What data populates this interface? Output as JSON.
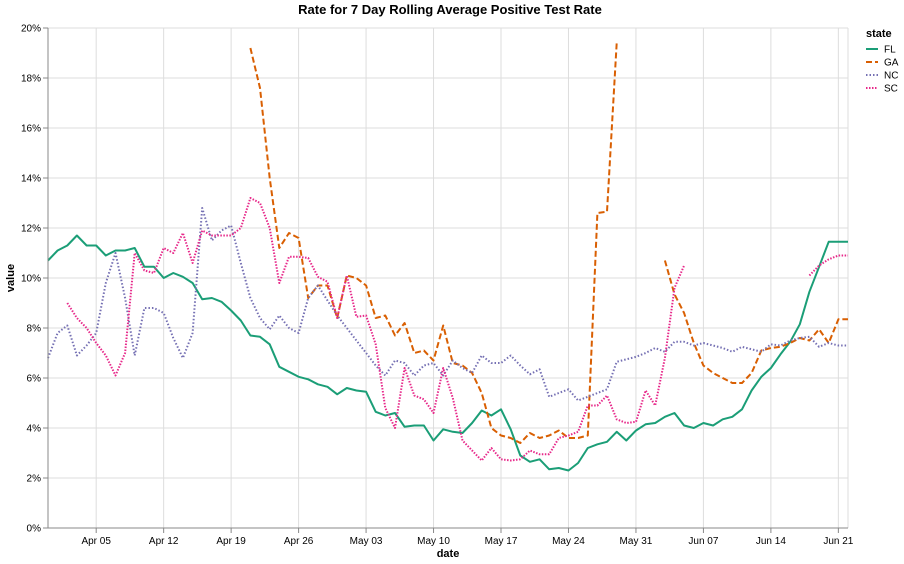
{
  "chart_data": {
    "type": "line",
    "title": "Rate for 7 Day Rolling Average Positive Test Rate",
    "xlabel": "date",
    "ylabel": "value",
    "x_start": "2020-03-31",
    "x_end": "2020-06-22",
    "xlim": [
      "2020-03-31",
      "2020-06-22"
    ],
    "ylim": [
      0,
      20
    ],
    "y_ticks": [
      "0%",
      "2%",
      "4%",
      "6%",
      "8%",
      "10%",
      "12%",
      "14%",
      "16%",
      "18%",
      "20%"
    ],
    "x_ticks": [
      {
        "date": "2020-04-05",
        "label": "Apr 05"
      },
      {
        "date": "2020-04-12",
        "label": "Apr 12"
      },
      {
        "date": "2020-04-19",
        "label": "Apr 19"
      },
      {
        "date": "2020-04-26",
        "label": "Apr 26"
      },
      {
        "date": "2020-05-03",
        "label": "May 03"
      },
      {
        "date": "2020-05-10",
        "label": "May 10"
      },
      {
        "date": "2020-05-17",
        "label": "May 17"
      },
      {
        "date": "2020-05-24",
        "label": "May 24"
      },
      {
        "date": "2020-05-31",
        "label": "May 31"
      },
      {
        "date": "2020-06-07",
        "label": "Jun 07"
      },
      {
        "date": "2020-06-14",
        "label": "Jun 14"
      },
      {
        "date": "2020-06-21",
        "label": "Jun 21"
      }
    ],
    "grid": true,
    "legend": {
      "title": "state",
      "placement": "top-right"
    },
    "series": [
      {
        "name": "FL",
        "color": "#1b9e77",
        "dash": "solid",
        "x": [
          "2020-03-31",
          "2020-04-01",
          "2020-04-02",
          "2020-04-03",
          "2020-04-04",
          "2020-04-05",
          "2020-04-06",
          "2020-04-07",
          "2020-04-08",
          "2020-04-09",
          "2020-04-10",
          "2020-04-11",
          "2020-04-12",
          "2020-04-13",
          "2020-04-14",
          "2020-04-15",
          "2020-04-16",
          "2020-04-17",
          "2020-04-18",
          "2020-04-19",
          "2020-04-20",
          "2020-04-21",
          "2020-04-22",
          "2020-04-23",
          "2020-04-24",
          "2020-04-25",
          "2020-04-26",
          "2020-04-27",
          "2020-04-28",
          "2020-04-29",
          "2020-04-30",
          "2020-05-01",
          "2020-05-02",
          "2020-05-03",
          "2020-05-04",
          "2020-05-05",
          "2020-05-06",
          "2020-05-07",
          "2020-05-08",
          "2020-05-09",
          "2020-05-10",
          "2020-05-11",
          "2020-05-12",
          "2020-05-13",
          "2020-05-14",
          "2020-05-15",
          "2020-05-16",
          "2020-05-17",
          "2020-05-18",
          "2020-05-19",
          "2020-05-20",
          "2020-05-21",
          "2020-05-22",
          "2020-05-23",
          "2020-05-24",
          "2020-05-25",
          "2020-05-26",
          "2020-05-27",
          "2020-05-28",
          "2020-05-29",
          "2020-05-30",
          "2020-05-31",
          "2020-06-01",
          "2020-06-02",
          "2020-06-03",
          "2020-06-04",
          "2020-06-05",
          "2020-06-06",
          "2020-06-07",
          "2020-06-08",
          "2020-06-09",
          "2020-06-10",
          "2020-06-11",
          "2020-06-12",
          "2020-06-13",
          "2020-06-14",
          "2020-06-15",
          "2020-06-16",
          "2020-06-17",
          "2020-06-18",
          "2020-06-19",
          "2020-06-20",
          "2020-06-21",
          "2020-06-22"
        ],
        "values": [
          10.7,
          11.1,
          11.3,
          11.7,
          11.3,
          11.3,
          10.9,
          11.1,
          11.1,
          11.2,
          10.45,
          10.45,
          10.0,
          10.2,
          10.05,
          9.8,
          9.15,
          9.2,
          9.05,
          8.7,
          8.3,
          7.7,
          7.65,
          7.35,
          6.45,
          6.25,
          6.05,
          5.95,
          5.75,
          5.65,
          5.35,
          5.6,
          5.5,
          5.45,
          4.65,
          4.5,
          4.6,
          4.05,
          4.1,
          4.1,
          3.5,
          3.95,
          3.85,
          3.8,
          4.2,
          4.7,
          4.5,
          4.75,
          3.95,
          2.9,
          2.65,
          2.75,
          2.35,
          2.4,
          2.3,
          2.6,
          3.2,
          3.35,
          3.45,
          3.85,
          3.5,
          3.9,
          4.15,
          4.2,
          4.45,
          4.6,
          4.1,
          4.0,
          4.2,
          4.1,
          4.35,
          4.45,
          4.75,
          5.5,
          6.05,
          6.4,
          6.95,
          7.45,
          8.15,
          9.45,
          10.45,
          11.45,
          11.45,
          11.45
        ]
      },
      {
        "name": "GA",
        "color": "#d95f02",
        "dash": "6,3",
        "x": [
          "2020-04-21",
          "2020-04-22",
          "2020-04-23",
          "2020-04-24",
          "2020-04-25",
          "2020-04-26",
          "2020-04-27",
          "2020-04-28",
          "2020-04-29",
          "2020-04-30",
          "2020-05-01",
          "2020-05-02",
          "2020-05-03",
          "2020-05-04",
          "2020-05-05",
          "2020-05-06",
          "2020-05-07",
          "2020-05-08",
          "2020-05-09",
          "2020-05-10",
          "2020-05-11",
          "2020-05-12",
          "2020-05-13",
          "2020-05-14",
          "2020-05-15",
          "2020-05-16",
          "2020-05-17",
          "2020-05-18",
          "2020-05-19",
          "2020-05-20",
          "2020-05-21",
          "2020-05-22",
          "2020-05-23",
          "2020-05-24",
          "2020-05-25",
          "2020-05-26",
          "2020-05-27",
          "2020-05-28",
          "2020-05-29",
          "2020-05-30",
          "2020-05-31",
          "2020-06-01",
          "2020-06-02",
          "2020-06-03",
          "2020-06-04",
          "2020-06-05",
          "2020-06-06",
          "2020-06-07",
          "2020-06-08",
          "2020-06-09",
          "2020-06-10",
          "2020-06-11",
          "2020-06-12",
          "2020-06-13",
          "2020-06-14",
          "2020-06-15",
          "2020-06-16",
          "2020-06-17",
          "2020-06-18",
          "2020-06-19",
          "2020-06-20",
          "2020-06-21",
          "2020-06-22"
        ],
        "values": [
          19.2,
          17.6,
          14.0,
          11.2,
          11.8,
          11.6,
          9.2,
          9.7,
          9.7,
          8.4,
          10.1,
          10.0,
          9.7,
          8.4,
          8.5,
          7.7,
          8.2,
          7.0,
          7.1,
          6.7,
          8.1,
          6.6,
          6.5,
          6.2,
          5.4,
          4.0,
          3.7,
          3.6,
          3.4,
          3.8,
          3.6,
          3.7,
          3.9,
          3.6,
          3.6,
          3.7,
          12.6,
          12.65,
          19.4,
          null,
          null,
          null,
          null,
          10.7,
          9.35,
          8.6,
          7.4,
          6.5,
          6.2,
          6.0,
          5.8,
          5.8,
          6.2,
          7.1,
          7.2,
          7.25,
          7.4,
          7.6,
          7.5,
          7.95,
          7.4,
          8.35,
          8.35
        ]
      },
      {
        "name": "NC",
        "color": "#7570b3",
        "dash": "1.5,2",
        "x": [
          "2020-03-31",
          "2020-04-01",
          "2020-04-02",
          "2020-04-03",
          "2020-04-04",
          "2020-04-05",
          "2020-04-06",
          "2020-04-07",
          "2020-04-08",
          "2020-04-09",
          "2020-04-10",
          "2020-04-11",
          "2020-04-12",
          "2020-04-13",
          "2020-04-14",
          "2020-04-15",
          "2020-04-16",
          "2020-04-17",
          "2020-04-18",
          "2020-04-19",
          "2020-04-20",
          "2020-04-21",
          "2020-04-22",
          "2020-04-23",
          "2020-04-24",
          "2020-04-25",
          "2020-04-26",
          "2020-04-27",
          "2020-04-28",
          "2020-04-29",
          "2020-04-30",
          "2020-05-01",
          "2020-05-02",
          "2020-05-03",
          "2020-05-04",
          "2020-05-05",
          "2020-05-06",
          "2020-05-07",
          "2020-05-08",
          "2020-05-09",
          "2020-05-10",
          "2020-05-11",
          "2020-05-12",
          "2020-05-13",
          "2020-05-14",
          "2020-05-15",
          "2020-05-16",
          "2020-05-17",
          "2020-05-18",
          "2020-05-19",
          "2020-05-20",
          "2020-05-21",
          "2020-05-22",
          "2020-05-23",
          "2020-05-24",
          "2020-05-25",
          "2020-05-26",
          "2020-05-27",
          "2020-05-28",
          "2020-05-29",
          "2020-05-30",
          "2020-05-31",
          "2020-06-01",
          "2020-06-02",
          "2020-06-03",
          "2020-06-04",
          "2020-06-05",
          "2020-06-06",
          "2020-06-07",
          "2020-06-08",
          "2020-06-09",
          "2020-06-10",
          "2020-06-11",
          "2020-06-12",
          "2020-06-13",
          "2020-06-14",
          "2020-06-15",
          "2020-06-16",
          "2020-06-17",
          "2020-06-18",
          "2020-06-19",
          "2020-06-20",
          "2020-06-21",
          "2020-06-22"
        ],
        "values": [
          6.8,
          7.8,
          8.1,
          6.9,
          7.3,
          7.8,
          9.8,
          11.0,
          9.2,
          6.9,
          8.8,
          8.8,
          8.6,
          7.6,
          6.8,
          7.8,
          12.8,
          11.5,
          11.9,
          12.1,
          10.6,
          9.2,
          8.4,
          7.95,
          8.5,
          8.0,
          7.8,
          9.2,
          9.7,
          9.1,
          8.5,
          8.0,
          7.5,
          7.0,
          6.5,
          6.1,
          6.7,
          6.6,
          6.1,
          6.5,
          6.6,
          6.1,
          6.7,
          6.4,
          6.2,
          6.9,
          6.6,
          6.6,
          6.9,
          6.5,
          6.15,
          6.35,
          5.25,
          5.4,
          5.55,
          5.1,
          5.25,
          5.4,
          5.55,
          6.65,
          6.75,
          6.85,
          7.0,
          7.2,
          7.05,
          7.45,
          7.45,
          7.3,
          7.4,
          7.3,
          7.2,
          7.05,
          7.25,
          7.15,
          7.05,
          7.35,
          7.3,
          7.5,
          7.6,
          7.65,
          7.25,
          7.4,
          7.3,
          7.3
        ]
      },
      {
        "name": "SC",
        "color": "#e7298a",
        "dash": "1.5,1.5",
        "x": [
          "2020-04-02",
          "2020-04-03",
          "2020-04-04",
          "2020-04-05",
          "2020-04-06",
          "2020-04-07",
          "2020-04-08",
          "2020-04-09",
          "2020-04-10",
          "2020-04-11",
          "2020-04-12",
          "2020-04-13",
          "2020-04-14",
          "2020-04-15",
          "2020-04-16",
          "2020-04-17",
          "2020-04-18",
          "2020-04-19",
          "2020-04-20",
          "2020-04-21",
          "2020-04-22",
          "2020-04-23",
          "2020-04-24",
          "2020-04-25",
          "2020-04-26",
          "2020-04-27",
          "2020-04-28",
          "2020-04-29",
          "2020-04-30",
          "2020-05-01",
          "2020-05-02",
          "2020-05-03",
          "2020-05-04",
          "2020-05-05",
          "2020-05-06",
          "2020-05-07",
          "2020-05-08",
          "2020-05-09",
          "2020-05-10",
          "2020-05-11",
          "2020-05-12",
          "2020-05-13",
          "2020-05-14",
          "2020-05-15",
          "2020-05-16",
          "2020-05-17",
          "2020-05-18",
          "2020-05-19",
          "2020-05-20",
          "2020-05-21",
          "2020-05-22",
          "2020-05-23",
          "2020-05-24",
          "2020-05-25",
          "2020-05-26",
          "2020-05-27",
          "2020-05-28",
          "2020-05-29",
          "2020-05-30",
          "2020-05-31",
          "2020-06-01",
          "2020-06-02",
          "2020-06-03",
          "2020-06-04",
          "2020-06-05",
          "2020-06-06",
          "2020-06-07",
          "2020-06-08",
          "2020-06-09",
          "2020-06-10",
          "2020-06-11",
          "2020-06-12",
          "2020-06-13",
          "2020-06-14",
          "2020-06-15",
          "2020-06-16",
          "2020-06-17",
          "2020-06-18",
          "2020-06-19",
          "2020-06-20",
          "2020-06-21",
          "2020-06-22"
        ],
        "values": [
          9.0,
          8.4,
          8.0,
          7.4,
          6.9,
          6.1,
          7.0,
          11.0,
          10.3,
          10.2,
          11.2,
          11.0,
          11.8,
          10.6,
          11.9,
          11.7,
          11.7,
          11.7,
          12.0,
          13.2,
          13.0,
          12.0,
          9.8,
          10.85,
          10.85,
          10.8,
          10.05,
          9.85,
          8.4,
          10.1,
          8.45,
          8.5,
          7.35,
          4.8,
          4.0,
          6.4,
          5.3,
          5.15,
          4.6,
          6.4,
          5.2,
          3.5,
          3.1,
          2.7,
          3.2,
          2.75,
          2.7,
          2.75,
          3.1,
          2.95,
          2.95,
          3.6,
          3.7,
          3.85,
          4.9,
          4.9,
          5.3,
          4.35,
          4.2,
          4.25,
          5.5,
          4.9,
          6.8,
          9.6,
          10.5,
          null,
          null,
          null,
          null,
          null,
          null,
          null,
          null,
          null,
          null,
          null,
          null,
          10.1,
          10.5,
          10.75,
          10.9,
          10.9
        ]
      }
    ]
  }
}
